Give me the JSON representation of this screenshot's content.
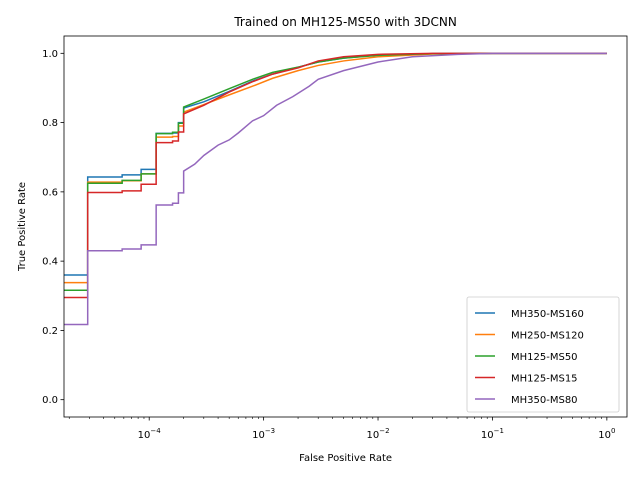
{
  "chart_data": {
    "type": "line",
    "title": "Trained on MH125-MS50 with 3DCNN",
    "xlabel": "False Positive Rate",
    "ylabel": "True Positive Rate",
    "xscale": "log",
    "xlim": [
      1.8e-05,
      1.5
    ],
    "ylim": [
      -0.05,
      1.05
    ],
    "x_ticks": [
      {
        "value": 0.0001,
        "base": "10",
        "exp": "−4"
      },
      {
        "value": 0.001,
        "base": "10",
        "exp": "−3"
      },
      {
        "value": 0.01,
        "base": "10",
        "exp": "−2"
      },
      {
        "value": 0.1,
        "base": "10",
        "exp": "−1"
      },
      {
        "value": 1,
        "base": "10",
        "exp": "0"
      }
    ],
    "y_ticks": [
      {
        "value": 0.0,
        "label": "0.0"
      },
      {
        "value": 0.2,
        "label": "0.2"
      },
      {
        "value": 0.4,
        "label": "0.4"
      },
      {
        "value": 0.6,
        "label": "0.6"
      },
      {
        "value": 0.8,
        "label": "0.8"
      },
      {
        "value": 1.0,
        "label": "1.0"
      }
    ],
    "legend_position": "lower-right",
    "series": [
      {
        "name": "MH350-MS160",
        "color": "#1f77b4",
        "points": [
          [
            1.8e-05,
            0.36
          ],
          [
            2.9e-05,
            0.36
          ],
          [
            2.9e-05,
            0.643
          ],
          [
            5.8e-05,
            0.643
          ],
          [
            5.8e-05,
            0.649
          ],
          [
            8.5e-05,
            0.649
          ],
          [
            8.5e-05,
            0.665
          ],
          [
            0.000115,
            0.665
          ],
          [
            0.000115,
            0.769
          ],
          [
            0.00016,
            0.769
          ],
          [
            0.00016,
            0.77
          ],
          [
            0.00018,
            0.77
          ],
          [
            0.00018,
            0.8
          ],
          [
            0.0002,
            0.8
          ],
          [
            0.0002,
            0.842
          ],
          [
            0.0003,
            0.86
          ],
          [
            0.0005,
            0.89
          ],
          [
            0.0008,
            0.92
          ],
          [
            0.0012,
            0.94
          ],
          [
            0.002,
            0.96
          ],
          [
            0.003,
            0.975
          ],
          [
            0.005,
            0.986
          ],
          [
            0.01,
            0.995
          ],
          [
            0.03,
            0.999
          ],
          [
            0.1,
            1.0
          ],
          [
            1.0,
            1.0
          ]
        ]
      },
      {
        "name": "MH250-MS120",
        "color": "#ff7f0e",
        "points": [
          [
            1.8e-05,
            0.338
          ],
          [
            2.9e-05,
            0.338
          ],
          [
            2.9e-05,
            0.628
          ],
          [
            5.8e-05,
            0.628
          ],
          [
            5.8e-05,
            0.632
          ],
          [
            8.5e-05,
            0.632
          ],
          [
            8.5e-05,
            0.652
          ],
          [
            0.000115,
            0.652
          ],
          [
            0.000115,
            0.758
          ],
          [
            0.00016,
            0.758
          ],
          [
            0.00016,
            0.76
          ],
          [
            0.00018,
            0.76
          ],
          [
            0.00018,
            0.79
          ],
          [
            0.0002,
            0.79
          ],
          [
            0.0002,
            0.83
          ],
          [
            0.0003,
            0.852
          ],
          [
            0.0005,
            0.88
          ],
          [
            0.0008,
            0.905
          ],
          [
            0.0012,
            0.928
          ],
          [
            0.002,
            0.95
          ],
          [
            0.003,
            0.965
          ],
          [
            0.005,
            0.978
          ],
          [
            0.01,
            0.99
          ],
          [
            0.03,
            0.998
          ],
          [
            0.1,
            1.0
          ],
          [
            1.0,
            1.0
          ]
        ]
      },
      {
        "name": "MH125-MS50",
        "color": "#2ca02c",
        "points": [
          [
            1.8e-05,
            0.316
          ],
          [
            2.9e-05,
            0.316
          ],
          [
            2.9e-05,
            0.625
          ],
          [
            5.8e-05,
            0.625
          ],
          [
            5.8e-05,
            0.633
          ],
          [
            8.5e-05,
            0.633
          ],
          [
            8.5e-05,
            0.652
          ],
          [
            0.000115,
            0.652
          ],
          [
            0.000115,
            0.768
          ],
          [
            0.00016,
            0.768
          ],
          [
            0.00016,
            0.772
          ],
          [
            0.00018,
            0.772
          ],
          [
            0.00018,
            0.798
          ],
          [
            0.0002,
            0.798
          ],
          [
            0.0002,
            0.845
          ],
          [
            0.0003,
            0.868
          ],
          [
            0.0005,
            0.898
          ],
          [
            0.0008,
            0.925
          ],
          [
            0.0012,
            0.945
          ],
          [
            0.002,
            0.96
          ],
          [
            0.003,
            0.975
          ],
          [
            0.005,
            0.986
          ],
          [
            0.01,
            0.994
          ],
          [
            0.03,
            0.999
          ],
          [
            0.1,
            1.0
          ],
          [
            1.0,
            1.0
          ]
        ]
      },
      {
        "name": "MH125-MS15",
        "color": "#d62728",
        "points": [
          [
            1.8e-05,
            0.295
          ],
          [
            2.9e-05,
            0.295
          ],
          [
            2.9e-05,
            0.598
          ],
          [
            5.8e-05,
            0.598
          ],
          [
            5.8e-05,
            0.603
          ],
          [
            8.5e-05,
            0.603
          ],
          [
            8.5e-05,
            0.622
          ],
          [
            0.000115,
            0.622
          ],
          [
            0.000115,
            0.742
          ],
          [
            0.00016,
            0.742
          ],
          [
            0.00016,
            0.747
          ],
          [
            0.00018,
            0.747
          ],
          [
            0.00018,
            0.773
          ],
          [
            0.0002,
            0.773
          ],
          [
            0.0002,
            0.825
          ],
          [
            0.0003,
            0.85
          ],
          [
            0.0005,
            0.888
          ],
          [
            0.0008,
            0.918
          ],
          [
            0.0012,
            0.94
          ],
          [
            0.002,
            0.958
          ],
          [
            0.003,
            0.978
          ],
          [
            0.005,
            0.99
          ],
          [
            0.01,
            0.997
          ],
          [
            0.03,
            1.0
          ],
          [
            1.0,
            1.0
          ]
        ]
      },
      {
        "name": "MH350-MS80",
        "color": "#9467bd",
        "points": [
          [
            1.8e-05,
            0.217
          ],
          [
            2.9e-05,
            0.217
          ],
          [
            2.9e-05,
            0.43
          ],
          [
            5.8e-05,
            0.43
          ],
          [
            5.8e-05,
            0.435
          ],
          [
            8.5e-05,
            0.435
          ],
          [
            8.5e-05,
            0.447
          ],
          [
            0.000115,
            0.447
          ],
          [
            0.000115,
            0.562
          ],
          [
            0.00016,
            0.562
          ],
          [
            0.00016,
            0.567
          ],
          [
            0.00018,
            0.567
          ],
          [
            0.00018,
            0.597
          ],
          [
            0.0002,
            0.597
          ],
          [
            0.0002,
            0.66
          ],
          [
            0.00025,
            0.68
          ],
          [
            0.0003,
            0.705
          ],
          [
            0.0004,
            0.735
          ],
          [
            0.0005,
            0.75
          ],
          [
            0.0006,
            0.77
          ],
          [
            0.0008,
            0.805
          ],
          [
            0.001,
            0.82
          ],
          [
            0.0013,
            0.85
          ],
          [
            0.0018,
            0.875
          ],
          [
            0.0025,
            0.905
          ],
          [
            0.003,
            0.925
          ],
          [
            0.005,
            0.95
          ],
          [
            0.01,
            0.975
          ],
          [
            0.02,
            0.99
          ],
          [
            0.05,
            0.997
          ],
          [
            0.1,
            1.0
          ],
          [
            1.0,
            1.0
          ]
        ]
      }
    ]
  }
}
